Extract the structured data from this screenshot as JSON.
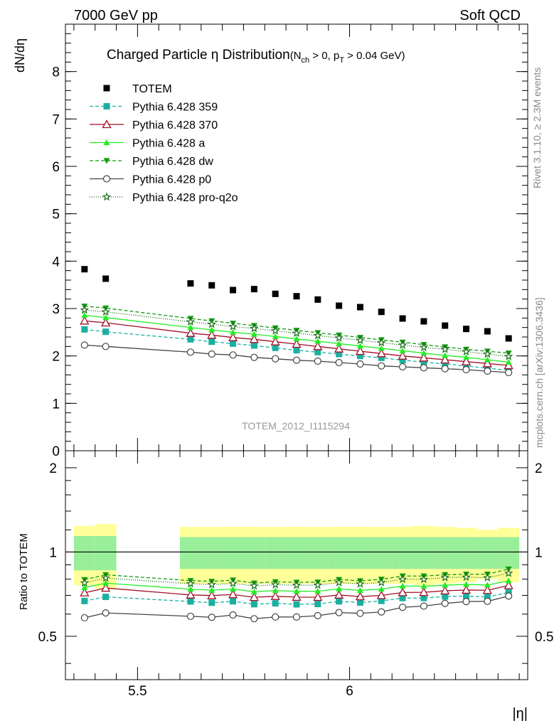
{
  "header": {
    "left": "7000 GeV pp",
    "right": "Soft QCD"
  },
  "side_labels": {
    "rivet": "Rivet 3.1.10, ≥ 2.3M events",
    "mcplots": "mcplots.cern.ch [arXiv:1306.3436]"
  },
  "chart_data": {
    "type": "scatter",
    "title_main": "Charged Particle η Distribution",
    "title_sub": "(N",
    "title_sub_ch": "ch",
    "title_sub_mid": " > 0, p",
    "title_sub_t": "T",
    "title_sub_end": " > 0.04 GeV)",
    "ylabel": "dN/dη",
    "xlabel": "|η|",
    "ratio_ylabel": "Ratio to TOTEM",
    "watermark": "TOTEM_2012_I1115294",
    "xlim": [
      5.33,
      6.42
    ],
    "ylim": [
      0,
      9
    ],
    "ratio_ylim": [
      0.35,
      2.3
    ],
    "x_ticks": [
      5.5,
      6
    ],
    "x_tick_labels": [
      "5.5",
      "6"
    ],
    "y_ticks": [
      0,
      1,
      2,
      3,
      4,
      5,
      6,
      7,
      8
    ],
    "y_tick_labels": [
      "0",
      "1",
      "2",
      "3",
      "4",
      "5",
      "6",
      "7",
      "8"
    ],
    "ratio_ticks": [
      0.5,
      1,
      2
    ],
    "ratio_tick_labels": [
      "0.5",
      "1",
      "2"
    ],
    "x": [
      5.375,
      5.425,
      5.625,
      5.675,
      5.725,
      5.775,
      5.825,
      5.875,
      5.925,
      5.975,
      6.025,
      6.075,
      6.125,
      6.175,
      6.225,
      6.275,
      6.325,
      6.375
    ],
    "data": {
      "name": "TOTEM",
      "values": [
        3.83,
        3.63,
        3.53,
        3.49,
        3.39,
        3.41,
        3.31,
        3.26,
        3.19,
        3.06,
        3.03,
        2.93,
        2.79,
        2.73,
        2.64,
        2.57,
        2.52,
        2.37
      ],
      "band_inner_pct": [
        0.14,
        0.14,
        0.13,
        0.13,
        0.13,
        0.13,
        0.13,
        0.13,
        0.13,
        0.13,
        0.13,
        0.13,
        0.13,
        0.13,
        0.13,
        0.13,
        0.13,
        0.13
      ],
      "band_outer_pct": [
        0.24,
        0.26,
        0.23,
        0.23,
        0.23,
        0.23,
        0.23,
        0.23,
        0.23,
        0.23,
        0.23,
        0.23,
        0.23,
        0.24,
        0.23,
        0.22,
        0.2,
        0.22
      ]
    },
    "series": [
      {
        "name": "Pythia 6.428 359",
        "color": "#1ab0a0",
        "marker": "square",
        "dash": "5,3",
        "values": [
          2.56,
          2.51,
          2.35,
          2.3,
          2.26,
          2.22,
          2.17,
          2.12,
          2.08,
          2.04,
          2.0,
          1.96,
          1.91,
          1.87,
          1.83,
          1.79,
          1.74,
          1.7
        ]
      },
      {
        "name": "Pythia 6.428 370",
        "color": "#a0102a",
        "marker": "triangle-open",
        "dash": "",
        "values": [
          2.74,
          2.7,
          2.48,
          2.44,
          2.39,
          2.35,
          2.3,
          2.25,
          2.2,
          2.15,
          2.1,
          2.05,
          2.0,
          1.96,
          1.92,
          1.88,
          1.84,
          1.8
        ]
      },
      {
        "name": "Pythia 6.428 a",
        "color": "#22ee22",
        "marker": "triangle",
        "dash": "",
        "values": [
          2.86,
          2.81,
          2.6,
          2.55,
          2.5,
          2.46,
          2.41,
          2.36,
          2.31,
          2.26,
          2.21,
          2.16,
          2.11,
          2.06,
          2.01,
          1.97,
          1.92,
          1.87
        ]
      },
      {
        "name": "Pythia 6.428 dw",
        "color": "#119911",
        "marker": "triangle-down",
        "dash": "5,3",
        "values": [
          3.05,
          3.01,
          2.79,
          2.74,
          2.69,
          2.64,
          2.59,
          2.54,
          2.49,
          2.44,
          2.39,
          2.34,
          2.29,
          2.24,
          2.19,
          2.14,
          2.1,
          2.06
        ]
      },
      {
        "name": "Pythia 6.428 p0",
        "color": "#444444",
        "marker": "circle-open",
        "dash": "",
        "values": [
          2.23,
          2.2,
          2.08,
          2.04,
          2.02,
          1.97,
          1.94,
          1.91,
          1.89,
          1.86,
          1.83,
          1.79,
          1.77,
          1.75,
          1.73,
          1.71,
          1.68,
          1.65
        ]
      },
      {
        "name": "Pythia 6.428 pro-q2o",
        "color": "#116611",
        "marker": "star",
        "dash": "1,2",
        "values": [
          2.97,
          2.93,
          2.72,
          2.67,
          2.62,
          2.58,
          2.53,
          2.48,
          2.43,
          2.38,
          2.33,
          2.28,
          2.23,
          2.18,
          2.14,
          2.09,
          2.04,
          1.99
        ]
      }
    ],
    "legend_position": "top-left"
  }
}
